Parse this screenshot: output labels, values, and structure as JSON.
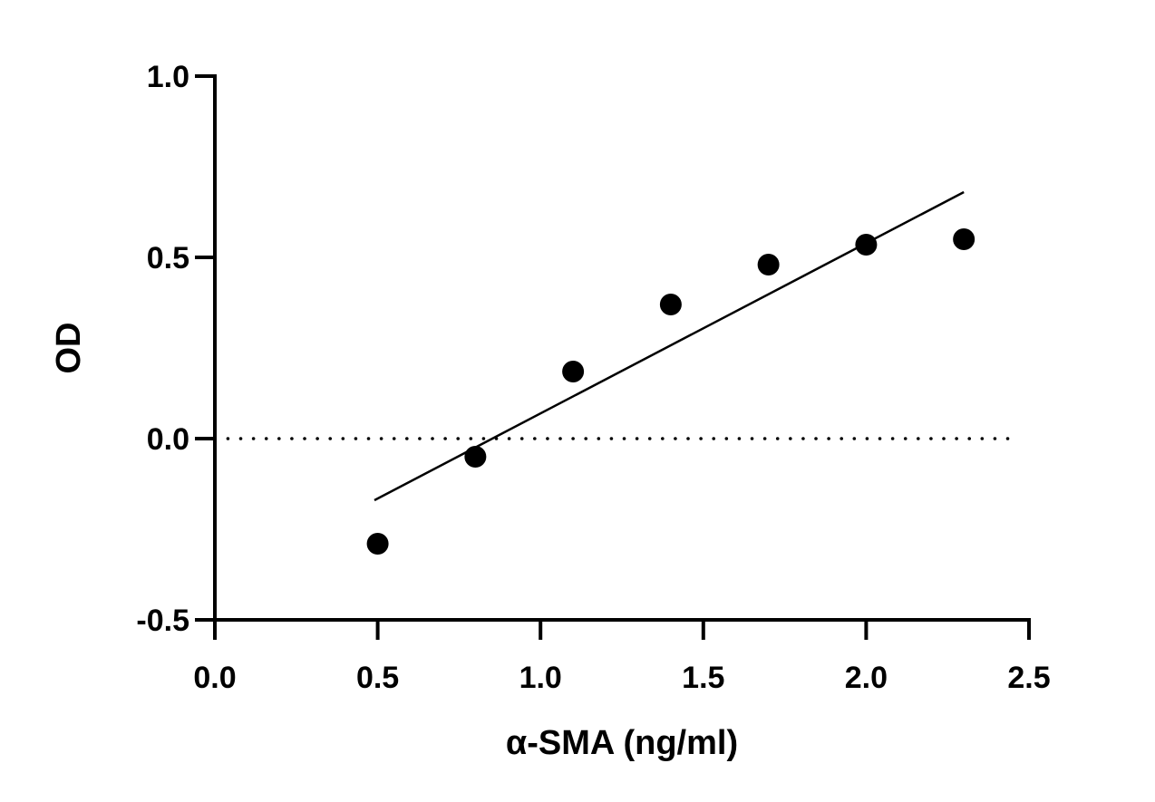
{
  "chart_data": {
    "type": "scatter",
    "title": "",
    "xlabel": "α-SMA (ng/ml)",
    "ylabel": "OD",
    "xlim": [
      0,
      2.5
    ],
    "ylim": [
      -0.5,
      1.0
    ],
    "x_ticks": [
      "0.0",
      "0.5",
      "1.0",
      "1.5",
      "2.0",
      "2.5"
    ],
    "y_ticks": [
      "-0.5",
      "0.0",
      "0.5",
      "1.0"
    ],
    "grid": false,
    "points": {
      "x": [
        0.5,
        0.8,
        1.1,
        1.4,
        1.7,
        2.0,
        2.3
      ],
      "y": [
        -0.29,
        -0.05,
        0.185,
        0.37,
        0.48,
        0.535,
        0.55
      ]
    },
    "fit_line": {
      "x": [
        0.49,
        2.3
      ],
      "y": [
        -0.17,
        0.68
      ]
    },
    "reference_line": {
      "y": 0.0,
      "x": [
        0.04,
        2.46
      ],
      "style": "dotted"
    },
    "colors": {
      "points": "#000000",
      "line": "#000000",
      "axes": "#000000"
    }
  }
}
